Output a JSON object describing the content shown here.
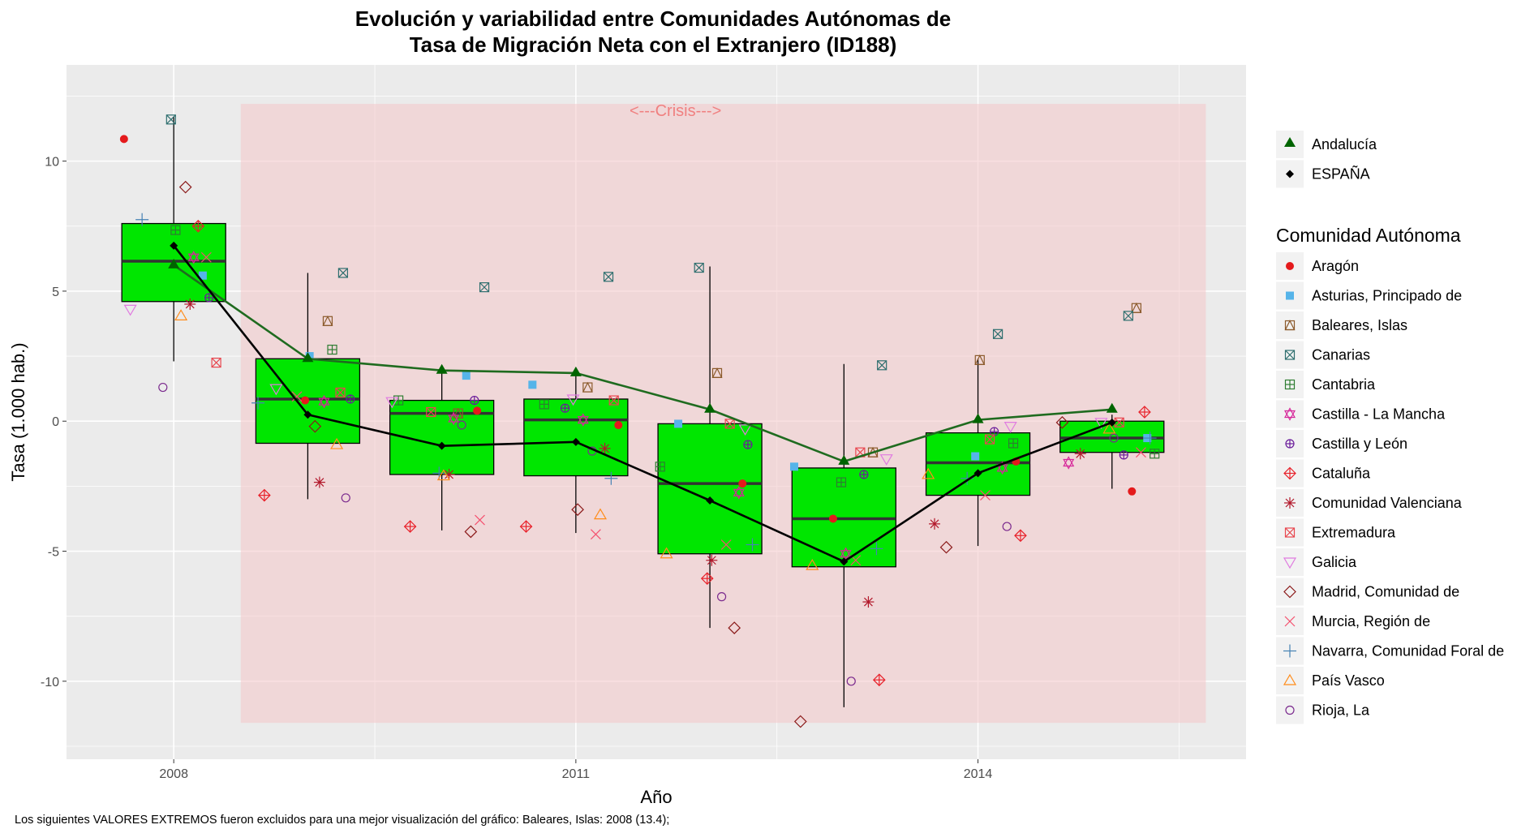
{
  "chart_data": {
    "type": "boxplot",
    "title_line1": "Evolución y variabilidad entre Comunidades Autónomas de",
    "title_line2": "Tasa de Migración Neta con el Extranjero (ID188)",
    "xlabel": "Año",
    "ylabel": "Tasa (1.000 hab.)",
    "xlim": [
      2007.2,
      2016.0
    ],
    "ylim": [
      -13.0,
      13.7
    ],
    "x_ticks": [
      2008,
      2011,
      2014
    ],
    "y_ticks": [
      -10,
      -5,
      0,
      5,
      10
    ],
    "y_tick_labels": [
      "-10",
      "-5",
      "0",
      "5",
      "10"
    ],
    "grid": true,
    "legend_position": "right",
    "caption": "Los siguientes VALORES EXTREMOS fueron excluidos para una mejor visualización del gráfico: Baleares, Islas: 2008 (13.4);",
    "crisis": {
      "label": "<---Crisis--->",
      "x_start": 2008.5,
      "x_end": 2015.7,
      "y_low": -11.6,
      "y_high": 12.2
    },
    "years": [
      2008,
      2009,
      2010,
      2011,
      2012,
      2013,
      2014,
      2015
    ],
    "boxes": [
      {
        "year": 2008,
        "q1": 4.6,
        "median": 6.15,
        "q3": 7.6,
        "whisker_low": 2.3,
        "whisker_high": 11.7
      },
      {
        "year": 2009,
        "q1": -0.85,
        "median": 0.85,
        "q3": 2.4,
        "whisker_low": -3.0,
        "whisker_high": 5.7
      },
      {
        "year": 2010,
        "q1": -2.05,
        "median": 0.3,
        "q3": 0.8,
        "whisker_low": -4.2,
        "whisker_high": 2.0
      },
      {
        "year": 2011,
        "q1": -2.1,
        "median": 0.05,
        "q3": 0.85,
        "whisker_low": -4.3,
        "whisker_high": 1.8
      },
      {
        "year": 2012,
        "q1": -5.1,
        "median": -2.4,
        "q3": -0.1,
        "whisker_low": -7.95,
        "whisker_high": 5.95
      },
      {
        "year": 2013,
        "q1": -5.6,
        "median": -3.75,
        "q3": -1.8,
        "whisker_low": -11.0,
        "whisker_high": 2.2
      },
      {
        "year": 2014,
        "q1": -2.85,
        "median": -1.6,
        "q3": -0.45,
        "whisker_low": -4.8,
        "whisker_high": 2.4
      },
      {
        "year": 2015,
        "q1": -1.2,
        "median": -0.65,
        "q3": 0.0,
        "whisker_low": -2.6,
        "whisker_high": 0.25
      }
    ],
    "lines": [
      {
        "name": "Andalucía",
        "color": "#1f6b1f",
        "marker_color": "#006400",
        "marker": "triangle",
        "values": [
          6.0,
          2.4,
          1.95,
          1.85,
          0.45,
          -1.55,
          0.05,
          0.45
        ]
      },
      {
        "name": "ESPAÑA",
        "color": "#000000",
        "marker_color": "#000000",
        "marker": "diamond",
        "values": [
          6.75,
          0.25,
          -0.95,
          -0.8,
          -3.05,
          -5.4,
          -2.0,
          -0.05
        ]
      }
    ],
    "series": [
      {
        "name": "Aragón",
        "color": "#e41a1c",
        "marker": "filled-circle",
        "offset": 0.58,
        "values": [
          10.85,
          0.8,
          0.4,
          -0.15,
          -2.4,
          -3.75,
          -1.55,
          -2.7
        ]
      },
      {
        "name": "Asturias, Principado de",
        "color": "#56b4e9",
        "marker": "filled-square",
        "offset": 0.68,
        "values": [
          5.6,
          2.5,
          1.75,
          1.4,
          -0.1,
          -1.75,
          -1.35,
          -0.65
        ]
      },
      {
        "name": "Baleares, Islas",
        "color": "#8b5a2b",
        "marker": "square-triangle",
        "offset": 0.46,
        "values": [
          null,
          3.85,
          0.3,
          1.3,
          1.85,
          -1.2,
          2.35,
          4.35
        ]
      },
      {
        "name": "Canarias",
        "color": "#2f6f6f",
        "marker": "square-x",
        "offset": 0.0,
        "values": [
          11.6,
          5.7,
          5.15,
          5.55,
          5.9,
          2.15,
          3.35,
          4.05
        ]
      },
      {
        "name": "Cantabria",
        "color": "#2e7d32",
        "marker": "square-plus",
        "offset": 0.0,
        "values": [
          7.35,
          2.75,
          0.8,
          0.65,
          -1.75,
          -2.35,
          -0.85,
          -1.25
        ]
      },
      {
        "name": "Castilla - La Mancha",
        "color": "#d6279a",
        "marker": "star-david",
        "offset": 0.0,
        "values": [
          6.3,
          0.75,
          0.1,
          0.05,
          -2.75,
          -5.1,
          -1.8,
          -1.6
        ]
      },
      {
        "name": "Castilla y León",
        "color": "#6a1b9a",
        "marker": "circle-plus",
        "offset": 0.0,
        "values": [
          4.75,
          0.85,
          0.8,
          0.5,
          -0.9,
          -2.05,
          -0.4,
          -1.3
        ]
      },
      {
        "name": "Cataluña",
        "color": "#e8212a",
        "marker": "diamond-plus",
        "offset": 0.0,
        "values": [
          7.5,
          -2.85,
          -4.05,
          -4.05,
          -6.05,
          -9.95,
          -4.4,
          0.35
        ]
      },
      {
        "name": "Comunidad Valenciana",
        "color": "#b2182b",
        "marker": "asterisk",
        "offset": 0.0,
        "values": [
          4.5,
          -2.35,
          -2.05,
          -1.05,
          -5.35,
          -6.95,
          -3.95,
          -1.25
        ]
      },
      {
        "name": "Extremadura",
        "color": "#e8474f",
        "marker": "square-x",
        "offset": 0.0,
        "values": [
          2.25,
          1.1,
          0.35,
          0.8,
          -0.1,
          -1.2,
          -0.7,
          -0.05
        ]
      },
      {
        "name": "Galicia",
        "color": "#e07be0",
        "marker": "triangle-down",
        "offset": 0.0,
        "values": [
          4.3,
          1.25,
          0.75,
          0.85,
          -0.3,
          -1.45,
          -0.2,
          -0.05
        ]
      },
      {
        "name": "Madrid, Comunidad de",
        "color": "#8b1a1a",
        "marker": "diamond",
        "offset": 0.0,
        "values": [
          9.0,
          -0.2,
          -4.25,
          -3.4,
          -7.95,
          -11.55,
          -4.85,
          -0.05
        ]
      },
      {
        "name": "Murcia, Región de",
        "color": "#f4506e",
        "marker": "cross",
        "offset": 0.0,
        "values": [
          6.3,
          0.95,
          -3.8,
          -4.35,
          -4.75,
          -5.35,
          -2.85,
          -1.2
        ]
      },
      {
        "name": "Navarra, Comunidad Foral de",
        "color": "#4682b4",
        "marker": "plus",
        "offset": 0.0,
        "values": [
          7.75,
          0.7,
          -2.0,
          -2.2,
          -4.75,
          -4.9,
          -2.2,
          -0.65
        ]
      },
      {
        "name": "País Vasco",
        "color": "#ff8c1a",
        "marker": "triangle-open",
        "offset": 0.0,
        "values": [
          4.05,
          -0.9,
          -2.1,
          -3.6,
          -5.1,
          -5.55,
          -2.05,
          -0.3
        ]
      },
      {
        "name": "Rioja, La",
        "color": "#7b2a8e",
        "marker": "circle-open",
        "offset": 0.0,
        "values": [
          1.3,
          -2.95,
          -0.15,
          -1.15,
          -6.75,
          -10.0,
          -4.05,
          -0.65
        ]
      }
    ],
    "legend1": [
      "Andalucía",
      "ESPAÑA"
    ],
    "legend2_title": "Comunidad Autónoma"
  }
}
